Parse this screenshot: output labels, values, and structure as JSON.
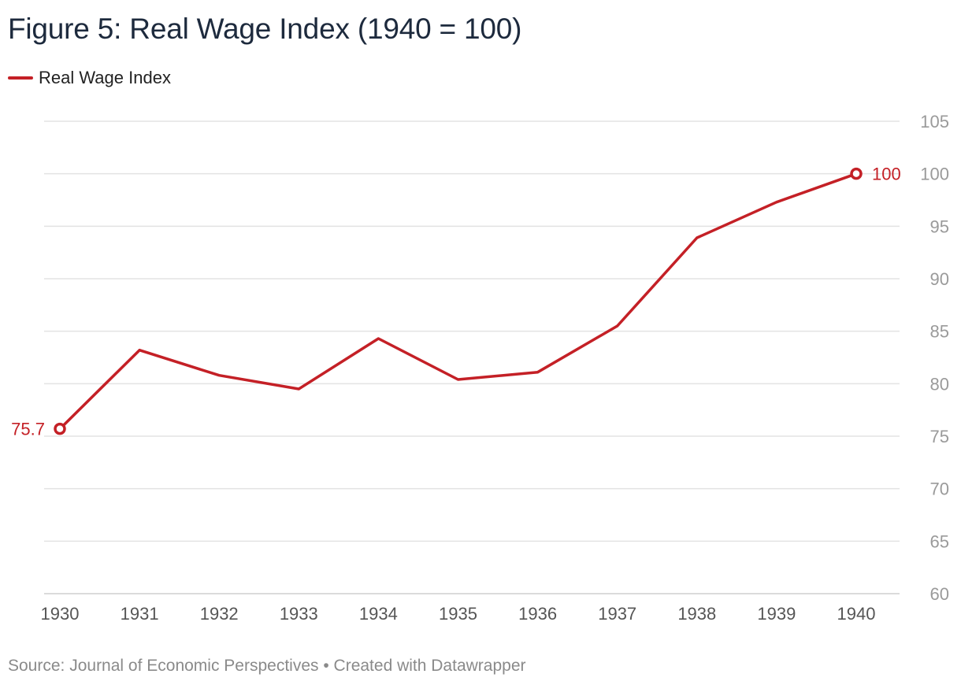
{
  "title": "Figure 5: Real Wage Index (1940 = 100)",
  "source": "Source: Journal of Economic Perspectives • Created with Datawrapper",
  "colors": {
    "line": "#c42026",
    "grid": "#e3e3e3",
    "tick": "#9a9a9a",
    "axis": "#555555"
  },
  "chart_data": {
    "type": "line",
    "title": "Figure 5: Real Wage Index (1940 = 100)",
    "xlabel": "",
    "ylabel": "",
    "x": [
      1930,
      1931,
      1932,
      1933,
      1934,
      1935,
      1936,
      1937,
      1938,
      1939,
      1940
    ],
    "series": [
      {
        "name": "Real Wage Index",
        "color": "#c42026",
        "values": [
          75.7,
          83.2,
          80.8,
          79.5,
          84.3,
          80.4,
          81.1,
          85.5,
          93.9,
          97.3,
          100
        ]
      }
    ],
    "ylim": [
      60,
      105
    ],
    "yticks": [
      60,
      65,
      70,
      75,
      80,
      85,
      90,
      95,
      100,
      105
    ],
    "yaxis_position": "right",
    "grid": true,
    "legend": "top-left",
    "annotations": [
      {
        "x": 1930,
        "y": 75.7,
        "label": "75.7",
        "side": "left"
      },
      {
        "x": 1940,
        "y": 100,
        "label": "100",
        "side": "right"
      }
    ]
  }
}
